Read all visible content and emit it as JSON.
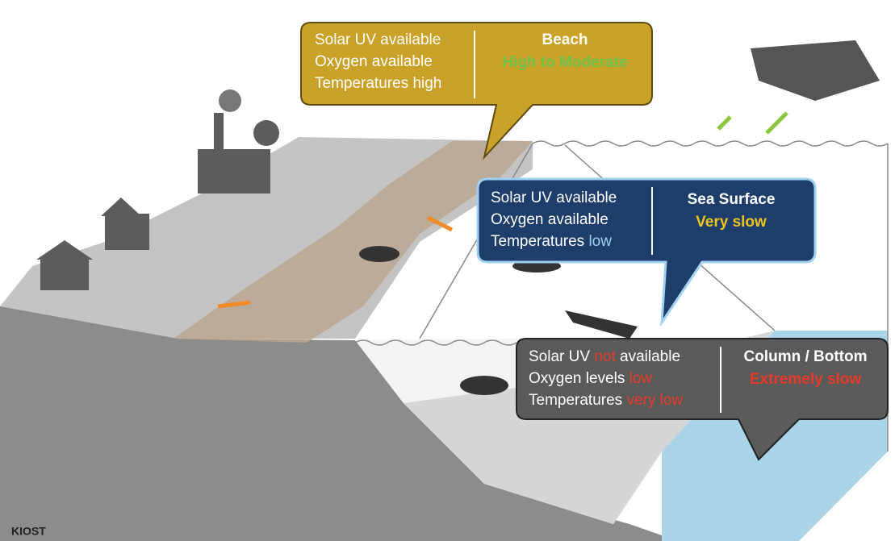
{
  "beach": {
    "conditions": [
      [
        "Solar UV available"
      ],
      [
        "Oxygen available"
      ],
      [
        "Temperatures high"
      ]
    ],
    "title": "Beach",
    "rate": "High to Moderate"
  },
  "sea_surface": {
    "conditions": [
      [
        "Solar UV available"
      ],
      [
        "Oxygen available"
      ],
      [
        "Temperatures ",
        "low"
      ]
    ],
    "title": "Sea Surface",
    "rate": "Very slow"
  },
  "column_bottom": {
    "conditions": [
      [
        "Solar UV ",
        "not",
        " available"
      ],
      [
        "Oxygen levels ",
        "low"
      ],
      [
        "Temperatures ",
        "very low"
      ]
    ],
    "title": "Column / Bottom",
    "rate": "Extremely slow"
  },
  "footer": "KIOST"
}
